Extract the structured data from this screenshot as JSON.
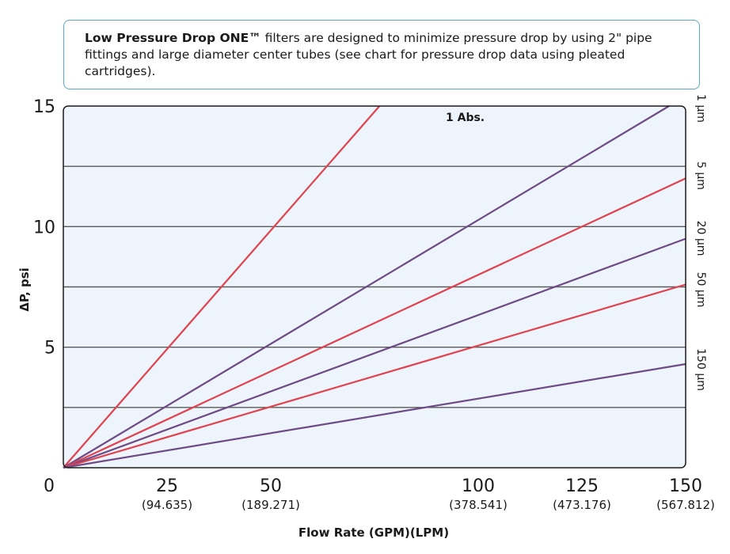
{
  "note": {
    "bold": "Low Pressure Drop ONE™",
    "text": " filters are designed to minimize pressure drop by using 2\" pipe fittings and large diameter center tubes (see chart for pressure drop data using pleated cartridges)."
  },
  "chart_data": {
    "type": "line",
    "xlabel": "Flow Rate (GPM)(LPM)",
    "ylabel": "ΔP, psi",
    "xlim": [
      0,
      150
    ],
    "ylim": [
      0,
      15
    ],
    "x_ticks": [
      {
        "value": 0,
        "label": "0",
        "sub": ""
      },
      {
        "value": 25,
        "label": "25",
        "sub": "(94.635)"
      },
      {
        "value": 50,
        "label": "50",
        "sub": "(189.271)"
      },
      {
        "value": 100,
        "label": "100",
        "sub": "(378.541)"
      },
      {
        "value": 125,
        "label": "125",
        "sub": "(473.176)"
      },
      {
        "value": 150,
        "label": "150",
        "sub": "(567.812)"
      }
    ],
    "y_ticks": [
      {
        "value": 5,
        "label": "5"
      },
      {
        "value": 10,
        "label": "10"
      },
      {
        "value": 15,
        "label": "15"
      }
    ],
    "gridlines_y": [
      2.5,
      5,
      7.5,
      10,
      12.5
    ],
    "plot_background": "#eef4fb",
    "grid_color": "#5a5a5a",
    "annotation": "1 Abs.",
    "series": [
      {
        "label": "",
        "color": "#e0424e",
        "x": [
          0,
          76.2
        ],
        "y": [
          0,
          15
        ]
      },
      {
        "label": "1 µm",
        "color": "#6e4b87",
        "x": [
          0,
          146
        ],
        "y": [
          0,
          15
        ]
      },
      {
        "label": "5 µm",
        "color": "#e0424e",
        "x": [
          0,
          150
        ],
        "y": [
          0,
          12
        ]
      },
      {
        "label": "20 µm",
        "color": "#6e4b87",
        "x": [
          0,
          150
        ],
        "y": [
          0,
          9.5
        ]
      },
      {
        "label": "50 µm",
        "color": "#e0424e",
        "x": [
          0,
          150
        ],
        "y": [
          0,
          7.6
        ]
      },
      {
        "label": "150 µm",
        "color": "#6e4b87",
        "x": [
          0,
          150
        ],
        "y": [
          0,
          4.3
        ]
      }
    ]
  }
}
